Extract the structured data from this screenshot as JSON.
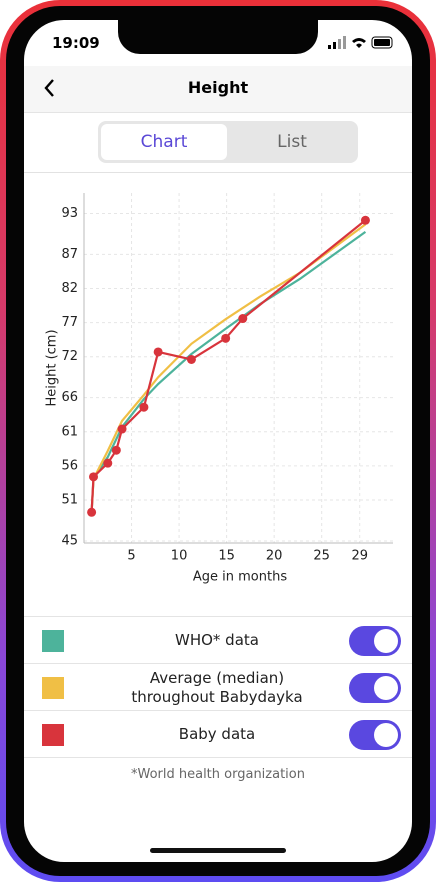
{
  "status_bar": {
    "time": "19:09"
  },
  "header": {
    "title": "Height"
  },
  "tabs": [
    "Chart",
    "List"
  ],
  "chart_data": {
    "type": "line",
    "xlabel": "Age in months",
    "ylabel": "Height (cm)",
    "xlim": [
      0,
      32.5
    ],
    "ylim": [
      44.7,
      96
    ],
    "xticks": [
      5,
      10,
      15,
      20,
      25,
      29
    ],
    "yticks": [
      45,
      51,
      56,
      61,
      66,
      72,
      77,
      82,
      87,
      93
    ],
    "grid": true,
    "series": [
      {
        "name": "WHO* data",
        "color": "#4db39b",
        "markers": false,
        "x": [
          0.8,
          1.0,
          2.5,
          4.0,
          6.3,
          7.8,
          11.3,
          14.9,
          18.5,
          22.7,
          29.6
        ],
        "values": [
          49.2,
          54.1,
          57.3,
          61.7,
          65.8,
          68.0,
          72.4,
          76.1,
          79.7,
          83.4,
          90.3
        ]
      },
      {
        "name": "Average (median) throughout Babydayka",
        "color": "#f0bf45",
        "markers": false,
        "x": [
          0.8,
          1.0,
          2.5,
          4.0,
          6.3,
          7.8,
          11.3,
          14.9,
          18.5,
          22.7,
          29.6
        ],
        "values": [
          49.2,
          54.1,
          58.2,
          62.6,
          66.4,
          69.0,
          73.9,
          77.5,
          80.8,
          84.3,
          91.4
        ]
      },
      {
        "name": "Baby data",
        "color": "#d8343c",
        "markers": true,
        "x": [
          0.8,
          1.0,
          2.5,
          3.4,
          4.0,
          6.3,
          7.8,
          11.3,
          14.9,
          16.7,
          29.6
        ],
        "values": [
          49.2,
          54.4,
          56.4,
          58.3,
          61.4,
          64.6,
          72.7,
          71.6,
          74.7,
          77.6,
          92.0
        ]
      }
    ]
  },
  "footnote": "*World health organization"
}
